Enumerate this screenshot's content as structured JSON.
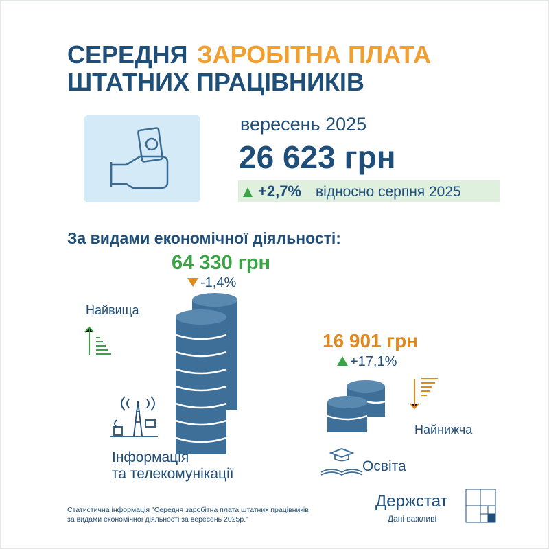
{
  "header": {
    "title_part1": "СЕРЕДНЯ",
    "title_part2": "ЗАРОБІТНА ПЛАТА",
    "title_line2": "ШТАТНИХ ПРАЦІВНИКІВ"
  },
  "summary": {
    "period": "вересень 2025",
    "amount": "26 623 грн",
    "change": "+2,7%",
    "change_note": "відносно серпня 2025"
  },
  "section_title": "За видами економічної діяльності:",
  "highest": {
    "label": "Найвища",
    "amount": "64 330 грн",
    "change": "-1,4%",
    "sector_line1": "Інформація",
    "sector_line2": "та телекомунікації"
  },
  "lowest": {
    "label": "Найнижча",
    "amount": "16 901 грн",
    "change": "+17,1%",
    "sector": "Освіта"
  },
  "footer": {
    "source_line1": "Статистична інформація \"Середня заробітна плата штатних працівників",
    "source_line2": "за видами економічної діяльності за вересень 2025р.\"",
    "brand": "Держстат",
    "slogan": "Дані важливі"
  }
}
